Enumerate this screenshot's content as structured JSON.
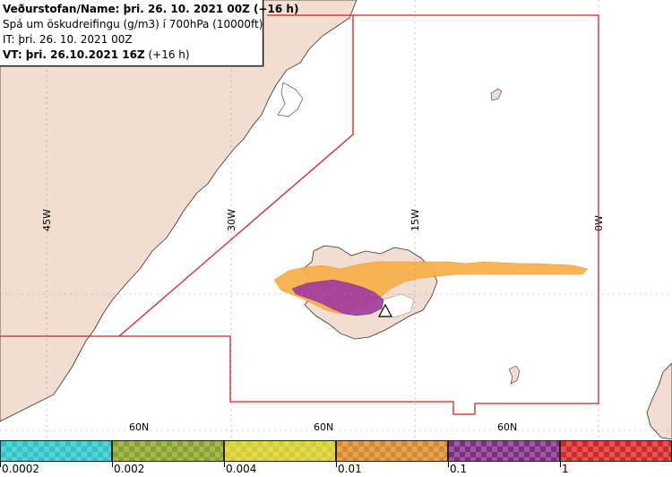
{
  "info": {
    "line1": "Veðurstofan/Name: þri. 26. 10. 2021 00Z (+16 h)",
    "line2": "Spá um öskudreifingu (g/m3) í 700hPa (10000ft)",
    "line3": "IT: þri. 26. 10. 2021 00Z",
    "line4_bold": "VT: þri. 26.10.2021 16Z",
    "line4_rest": "(+16 h)"
  },
  "graticule": {
    "lon_labels": [
      "45W",
      "30W",
      "15W",
      "0W"
    ],
    "lat_labels": [
      "60N",
      "60N",
      "60N"
    ]
  },
  "legend": {
    "colors": [
      "#2ec4c8",
      "#8aa42a",
      "#d6ce2c",
      "#d88a2c",
      "#7d2e84",
      "#d22828"
    ],
    "labels": [
      "0.0002",
      "0.002",
      "0.004",
      "0.01",
      "0.1",
      "1"
    ]
  },
  "colors": {
    "land": "#f1ded0",
    "water": "#ffffff",
    "border": "#d42020",
    "ash_orange": "#f8b04c",
    "ash_purple": "#a03aa0"
  }
}
